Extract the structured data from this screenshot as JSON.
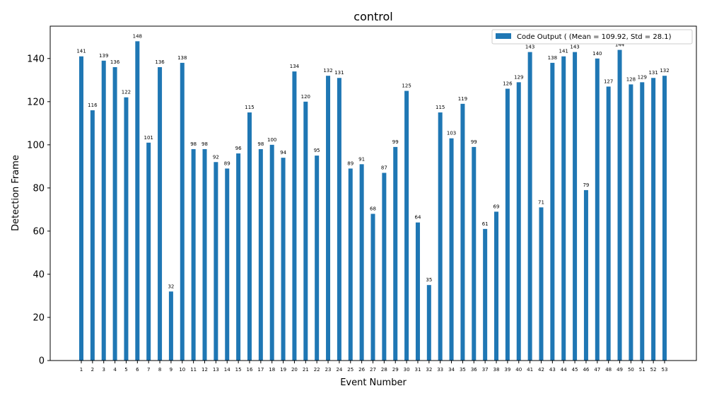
{
  "chart_data": {
    "type": "bar",
    "title": "control",
    "xlabel": "Event Number",
    "ylabel": "Detection Frame",
    "ylim": [
      0,
      155
    ],
    "yticks": [
      0,
      20,
      40,
      60,
      80,
      100,
      120,
      140
    ],
    "grid": false,
    "legend_position": "top-right",
    "categories": [
      "1",
      "2",
      "3",
      "4",
      "5",
      "6",
      "7",
      "8",
      "9",
      "10",
      "11",
      "12",
      "13",
      "14",
      "15",
      "16",
      "17",
      "18",
      "19",
      "20",
      "21",
      "22",
      "23",
      "24",
      "25",
      "26",
      "27",
      "28",
      "29",
      "30",
      "31",
      "32",
      "33",
      "34",
      "35",
      "36",
      "37",
      "38",
      "39",
      "40",
      "41",
      "42",
      "43",
      "44",
      "45",
      "46",
      "47",
      "48",
      "49",
      "50",
      "51",
      "52",
      "53"
    ],
    "series": [
      {
        "name": "Code Output ( (Mean = 109.92, Std = 28.1)",
        "color": "#1f77b4",
        "values": [
          141,
          116,
          139,
          136,
          122,
          148,
          101,
          136,
          32,
          138,
          98,
          98,
          92,
          89,
          96,
          115,
          98,
          100,
          94,
          134,
          120,
          95,
          132,
          131,
          89,
          91,
          68,
          87,
          99,
          125,
          64,
          35,
          115,
          103,
          119,
          99,
          61,
          69,
          126,
          129,
          143,
          71,
          138,
          141,
          143,
          79,
          140,
          127,
          144,
          128,
          129,
          131,
          132
        ]
      }
    ]
  }
}
